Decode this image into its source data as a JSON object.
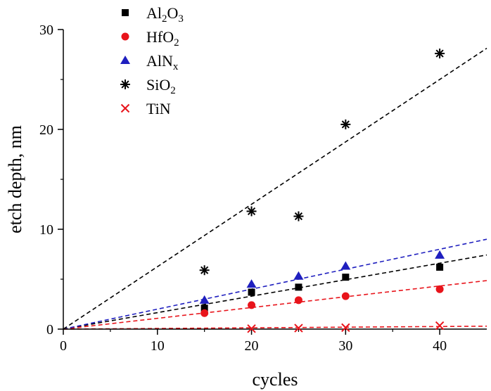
{
  "chart_data": {
    "type": "scatter",
    "xlabel": "cycles",
    "ylabel": "etch depth, nm",
    "xlim": [
      0,
      45
    ],
    "ylim": [
      0,
      30
    ],
    "x_ticks": [
      "0",
      "10",
      "20",
      "30",
      "40"
    ],
    "y_ticks": [
      "0",
      "10",
      "20",
      "30"
    ],
    "grid": false,
    "legend_position": "top-left",
    "series": [
      {
        "legend": [
          {
            "t": "Al"
          },
          {
            "t": "2",
            "sub": true
          },
          {
            "t": "O"
          },
          {
            "t": "3",
            "sub": true
          }
        ],
        "marker": "square",
        "color": "#000000",
        "points": [
          [
            15,
            2.1
          ],
          [
            20,
            3.7
          ],
          [
            25,
            4.2
          ],
          [
            30,
            5.2
          ],
          [
            40,
            6.2
          ]
        ],
        "fit_slope": 0.165
      },
      {
        "legend": [
          {
            "t": "HfO"
          },
          {
            "t": "2",
            "sub": true
          }
        ],
        "marker": "circle",
        "color": "#e8141b",
        "points": [
          [
            15,
            1.6
          ],
          [
            20,
            2.4
          ],
          [
            25,
            2.9
          ],
          [
            30,
            3.3
          ],
          [
            40,
            4.0
          ]
        ],
        "fit_slope": 0.108
      },
      {
        "legend": [
          {
            "t": "AlN"
          },
          {
            "t": "x",
            "sub": true
          }
        ],
        "marker": "triangle",
        "color": "#1f1fbf",
        "points": [
          [
            15,
            2.9
          ],
          [
            20,
            4.5
          ],
          [
            25,
            5.3
          ],
          [
            30,
            6.3
          ],
          [
            40,
            7.4
          ]
        ],
        "fit_slope": 0.2
      },
      {
        "legend": [
          {
            "t": "SiO"
          },
          {
            "t": "2",
            "sub": true
          }
        ],
        "marker": "asterisk",
        "color": "#000000",
        "points": [
          [
            15,
            5.9
          ],
          [
            20,
            11.8
          ],
          [
            25,
            11.3
          ],
          [
            30,
            20.5
          ],
          [
            40,
            27.6
          ]
        ],
        "fit_slope": 0.625
      },
      {
        "legend": [
          {
            "t": "TiN"
          }
        ],
        "marker": "x",
        "color": "#e8141b",
        "points": [
          [
            20,
            0.05
          ],
          [
            25,
            0.1
          ],
          [
            30,
            0.15
          ],
          [
            40,
            0.35
          ]
        ],
        "fit_slope": 0.0065
      }
    ]
  }
}
